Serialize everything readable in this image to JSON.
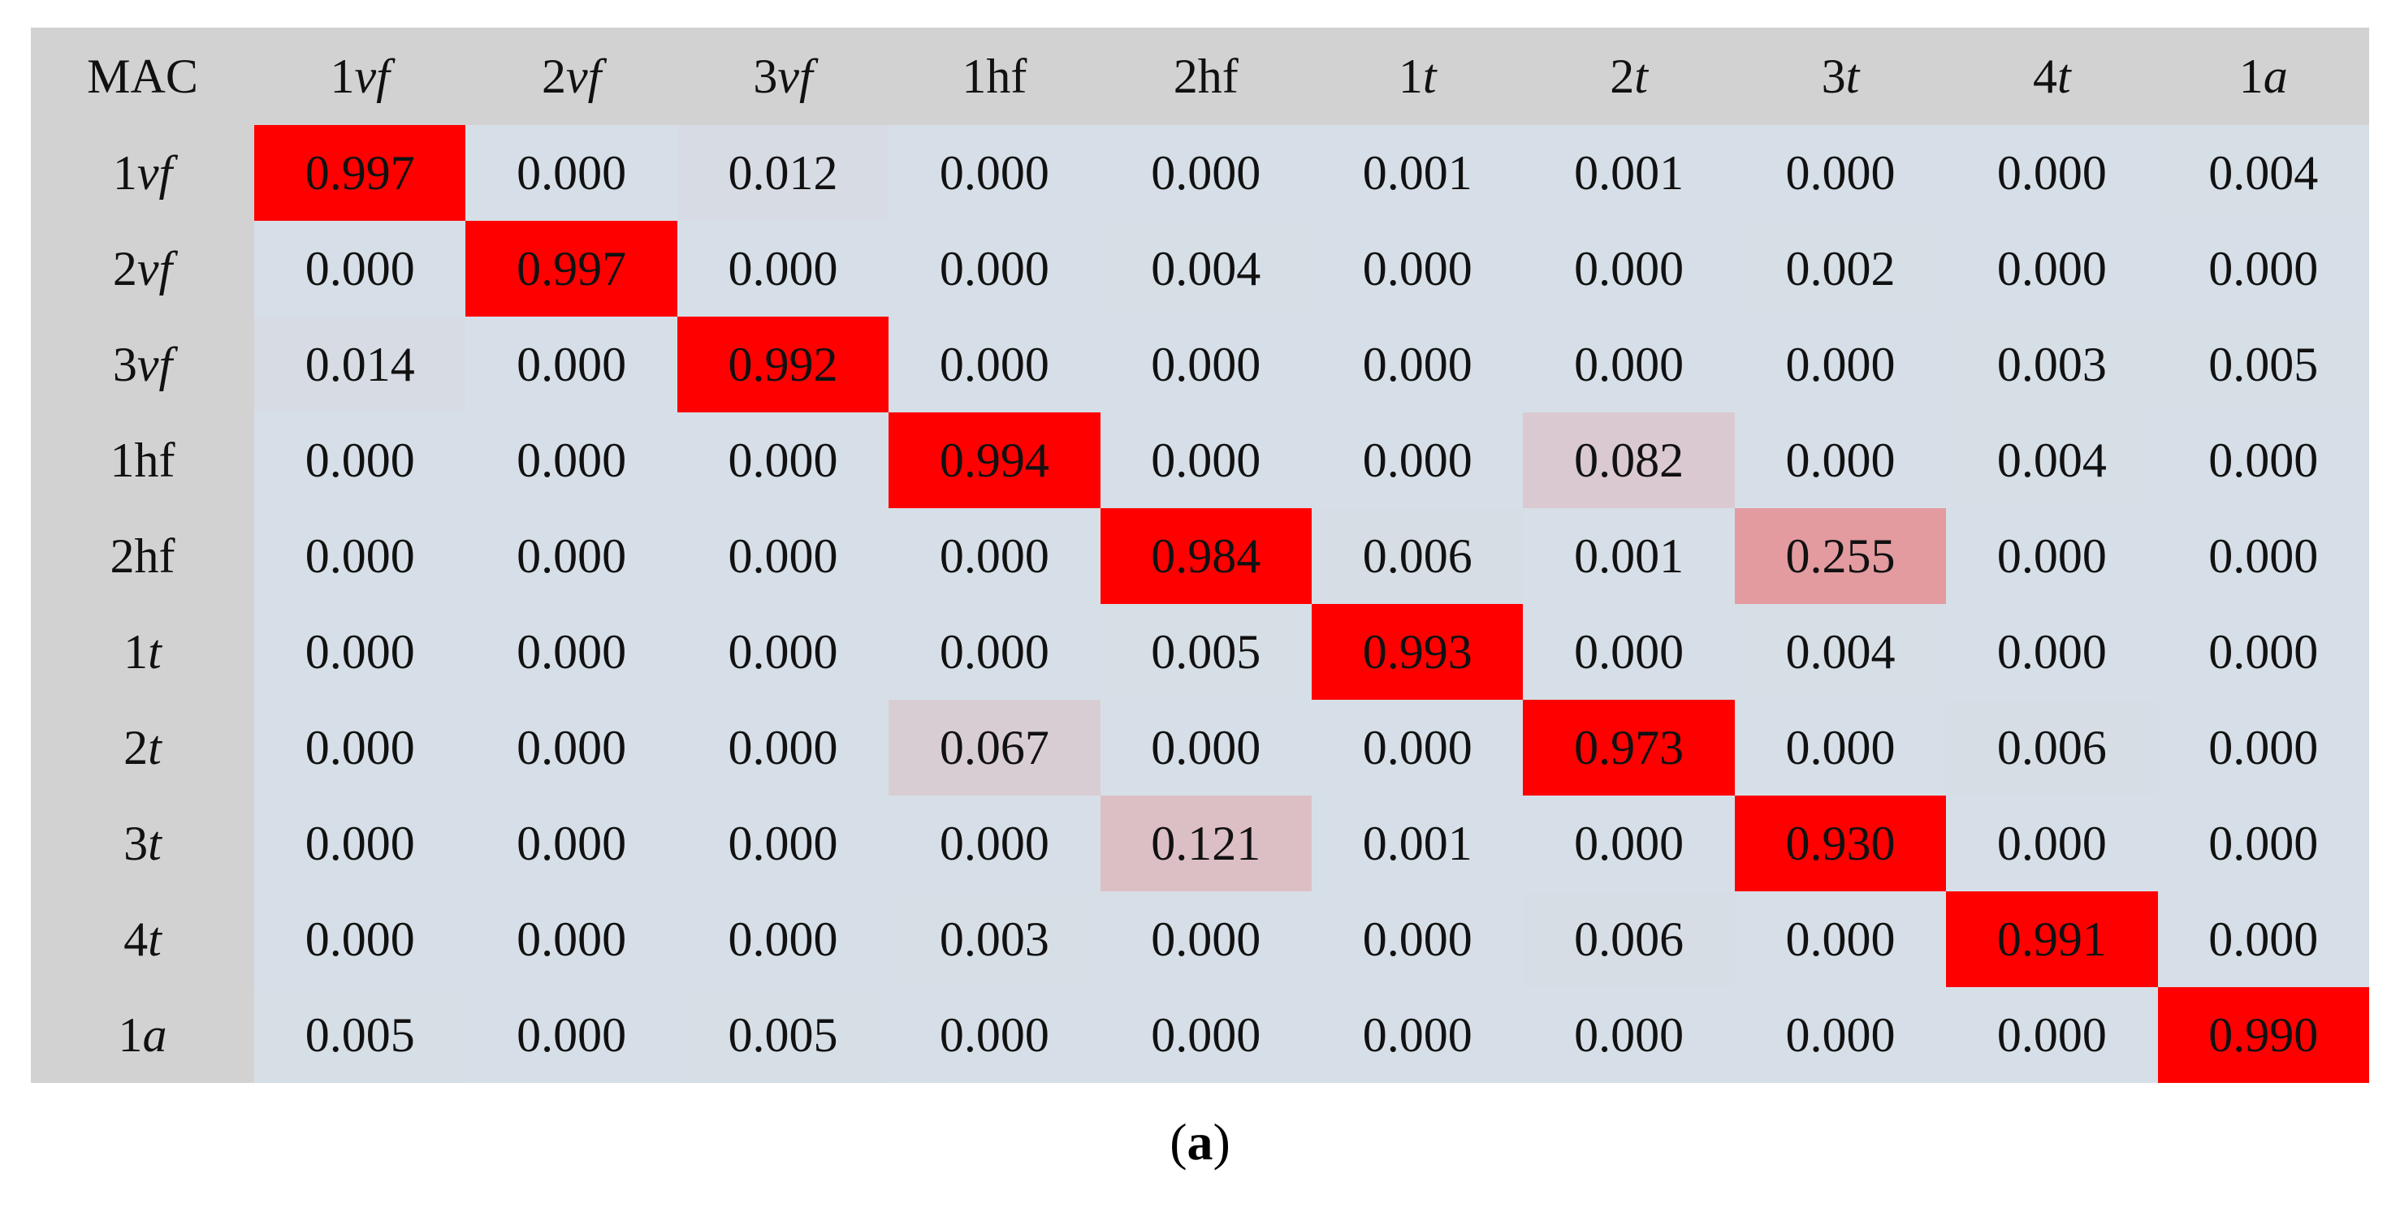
{
  "table": {
    "header": [
      "MAC",
      "1vf",
      "2vf",
      "3vf",
      "1hf",
      "2hf",
      "1t",
      "2t",
      "3t",
      "4t",
      "1a"
    ],
    "rows": [
      [
        "1vf",
        "0.997",
        "0.000",
        "0.012",
        "0.000",
        "0.000",
        "0.001",
        "0.001",
        "0.000",
        "0.000",
        "0.004"
      ],
      [
        "2vf",
        "0.000",
        "0.997",
        "0.000",
        "0.000",
        "0.004",
        "0.000",
        "0.000",
        "0.002",
        "0.000",
        "0.000"
      ],
      [
        "3vf",
        "0.014",
        "0.000",
        "0.992",
        "0.000",
        "0.000",
        "0.000",
        "0.000",
        "0.000",
        "0.003",
        "0.005"
      ],
      [
        "1hf",
        "0.000",
        "0.000",
        "0.000",
        "0.994",
        "0.000",
        "0.000",
        "0.082",
        "0.000",
        "0.004",
        "0.000"
      ],
      [
        "2hf",
        "0.000",
        "0.000",
        "0.000",
        "0.000",
        "0.984",
        "0.006",
        "0.001",
        "0.255",
        "0.000",
        "0.000"
      ],
      [
        "1t",
        "0.000",
        "0.000",
        "0.000",
        "0.000",
        "0.005",
        "0.993",
        "0.000",
        "0.004",
        "0.000",
        "0.000"
      ],
      [
        "2t",
        "0.000",
        "0.000",
        "0.000",
        "0.067",
        "0.000",
        "0.000",
        "0.973",
        "0.000",
        "0.006",
        "0.000"
      ],
      [
        "3t",
        "0.000",
        "0.000",
        "0.000",
        "0.000",
        "0.121",
        "0.001",
        "0.000",
        "0.930",
        "0.000",
        "0.000"
      ],
      [
        "4t",
        "0.000",
        "0.000",
        "0.000",
        "0.003",
        "0.000",
        "0.000",
        "0.006",
        "0.000",
        "0.991",
        "0.000"
      ],
      [
        "1a",
        "0.005",
        "0.000",
        "0.005",
        "0.000",
        "0.000",
        "0.000",
        "0.000",
        "0.000",
        "0.000",
        "0.990"
      ]
    ]
  },
  "caption": "(a)"
}
